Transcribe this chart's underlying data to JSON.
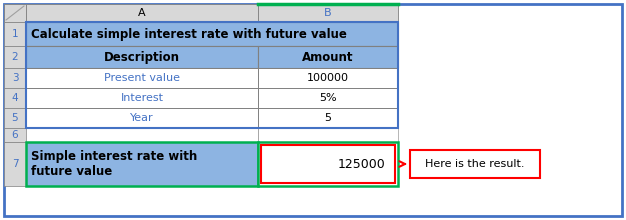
{
  "title": "Calculate simple interest rate with future value",
  "header_col_a": "Description",
  "header_col_b": "Amount",
  "rows": [
    {
      "desc": "Present value",
      "amount": "100000"
    },
    {
      "desc": "Interest",
      "amount": "5%"
    },
    {
      "desc": "Year",
      "amount": "5"
    }
  ],
  "result_label": "Simple interest rate with\nfuture value",
  "result_value": "125000",
  "annotation": "Here is the result.",
  "col_header_bg": "#8DB4E2",
  "col_header_fg": "#000000",
  "title_bg": "#8DB4E2",
  "title_fg": "#000000",
  "row_desc_fg": "#4472C4",
  "row_amount_fg": "#000000",
  "result_bg": "#8DB4E2",
  "result_fg": "#000000",
  "result_border_green": "#00B050",
  "result_value_border_red": "#FF0000",
  "outer_border_blue": "#4472C4",
  "cell_border": "#808080",
  "annotation_box_border": "#FF0000",
  "annotation_fg": "#000000",
  "row_num_bg": "#D8D8D8",
  "row_num_fg_blue": "#4472C4",
  "row_num_fg_teal": "#17375E",
  "col_letter_bg": "#D8D8D8",
  "page_border": "#4472C4",
  "arrow_color": "#FF0000",
  "triangle_color": "#A0A0A0"
}
